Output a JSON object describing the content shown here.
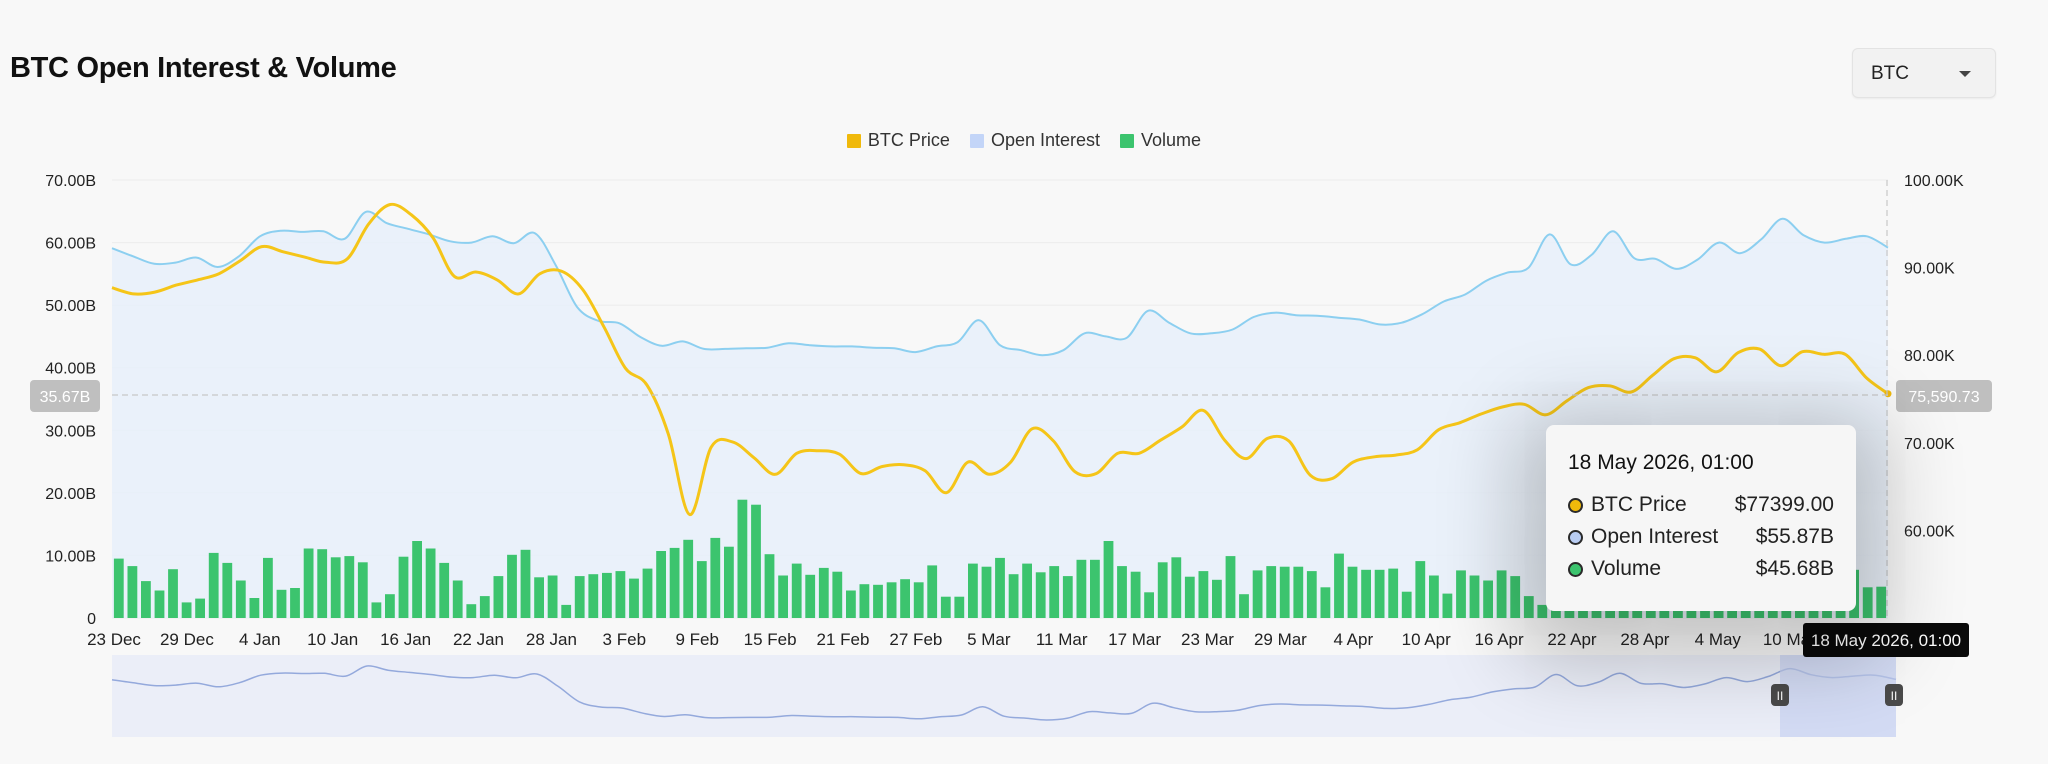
{
  "header": {
    "title": "BTC Open Interest & Volume"
  },
  "asset_select": {
    "value": "BTC"
  },
  "legend": [
    {
      "label": "BTC Price",
      "color": "#f0b90b"
    },
    {
      "label": "Open Interest",
      "color": "#c3d5f8"
    },
    {
      "label": "Volume",
      "color": "#3cc46e"
    }
  ],
  "crosshair": {
    "left_label": "35.67B",
    "right_label": "75,590.73",
    "x_label": "18 May 2026, 01:00"
  },
  "tooltip": {
    "time": "18 May 2026, 01:00",
    "rows": [
      {
        "label": "BTC Price",
        "value": "$77399.00",
        "color": "#f0b90b"
      },
      {
        "label": "Open Interest",
        "value": "$55.87B",
        "color": "#b9cdf3"
      },
      {
        "label": "Volume",
        "value": "$45.68B",
        "color": "#3cc46e"
      }
    ]
  },
  "chart_data": {
    "type": "line",
    "title": "BTC Open Interest & Volume",
    "x_ticks": [
      "23 Dec",
      "29 Dec",
      "4 Jan",
      "10 Jan",
      "16 Jan",
      "22 Jan",
      "28 Jan",
      "3 Feb",
      "9 Feb",
      "15 Feb",
      "21 Feb",
      "27 Feb",
      "5 Mar",
      "11 Mar",
      "17 Mar",
      "23 Mar",
      "29 Mar",
      "4 Apr",
      "10 Apr",
      "16 Apr",
      "22 Apr",
      "28 Apr",
      "4 May",
      "10 May"
    ],
    "y_left": {
      "ticks": [
        "0",
        "10.00B",
        "20.00B",
        "30.00B",
        "40.00B",
        "50.00B",
        "60.00B",
        "70.00B"
      ],
      "range": [
        0,
        70
      ],
      "unit": "B"
    },
    "y_right": {
      "ticks": [
        "60.00K",
        "70.00K",
        "80.00K",
        "90.00K",
        "100.00K"
      ],
      "range": [
        50000,
        100000
      ]
    },
    "grid": true,
    "legend_position": "top-center",
    "series": [
      {
        "name": "BTC Price",
        "axis": "right",
        "type": "line",
        "color": "#f0b90b",
        "values": [
          87700,
          87000,
          87200,
          88000,
          88600,
          89300,
          90800,
          92400,
          91800,
          91200,
          90600,
          91000,
          95000,
          97200,
          96000,
          93400,
          89000,
          89500,
          88600,
          87000,
          89300,
          89600,
          87500,
          83200,
          78500,
          76600,
          71000,
          61800,
          69500,
          70100,
          68300,
          66400,
          68800,
          69100,
          68700,
          66500,
          67300,
          67500,
          66800,
          64300,
          67800,
          66400,
          67800,
          71600,
          70200,
          66700,
          66500,
          68800,
          68800,
          70300,
          71800,
          73700,
          70300,
          68200,
          70500,
          70200,
          66300,
          65900,
          67800,
          68400,
          68600,
          69200,
          71500,
          72300,
          73300,
          74100,
          74400,
          73200,
          74800,
          76300,
          76500,
          75800,
          77700,
          79600,
          79700,
          78100,
          80300,
          80700,
          78800,
          80400,
          80100,
          80100,
          77400,
          75600
        ]
      },
      {
        "name": "Open Interest",
        "axis": "left",
        "type": "area",
        "color": "#8ccff0",
        "values": [
          59.1,
          57.8,
          56.6,
          56.8,
          57.6,
          56.1,
          57.8,
          61.0,
          61.9,
          61.7,
          61.8,
          60.6,
          64.9,
          63.1,
          62.2,
          61.3,
          60.2,
          60.0,
          61.0,
          59.9,
          61.5,
          56.3,
          49.7,
          47.5,
          47.1,
          44.9,
          43.5,
          44.2,
          43.0,
          43.0,
          43.1,
          43.2,
          43.9,
          43.6,
          43.4,
          43.4,
          43.2,
          43.1,
          42.5,
          43.4,
          44.1,
          47.6,
          43.6,
          42.8,
          42.0,
          42.8,
          45.5,
          45.0,
          44.8,
          49.1,
          47.2,
          45.5,
          45.5,
          46.1,
          48.1,
          48.8,
          48.4,
          48.3,
          48.0,
          47.7,
          46.9,
          47.2,
          48.6,
          50.6,
          51.7,
          53.9,
          55.2,
          56.0,
          61.3,
          56.5,
          58.1,
          61.8,
          57.5,
          57.4,
          55.8,
          57.3,
          60.0,
          58.3,
          60.5,
          63.8,
          61.2,
          60.0,
          60.6,
          61.0,
          59.2
        ]
      },
      {
        "name": "Volume",
        "axis": "left",
        "type": "bar",
        "color": "#3cc46e",
        "values": [
          9.5,
          8.3,
          5.9,
          4.4,
          7.8,
          2.5,
          3.1,
          10.4,
          8.8,
          6.0,
          3.2,
          9.6,
          4.5,
          4.8,
          11.1,
          11.0,
          9.7,
          9.9,
          8.9,
          2.5,
          3.8,
          9.8,
          12.3,
          11.1,
          8.8,
          6.0,
          2.2,
          3.5,
          6.7,
          10.1,
          10.9,
          6.5,
          6.8,
          2.1,
          6.7,
          7.0,
          7.2,
          7.5,
          6.3,
          7.9,
          10.7,
          11.2,
          12.5,
          9.1,
          12.8,
          11.4,
          18.9,
          18.1,
          10.2,
          6.8,
          8.7,
          6.9,
          8.0,
          7.4,
          4.4,
          5.4,
          5.3,
          5.7,
          6.2,
          5.7,
          8.4,
          3.4,
          3.4,
          8.7,
          8.2,
          9.6,
          7.0,
          8.7,
          7.3,
          8.3,
          6.7,
          9.3,
          9.3,
          12.3,
          8.3,
          7.4,
          4.1,
          8.9,
          9.7,
          6.6,
          7.5,
          6.1,
          9.9,
          3.8,
          7.6,
          8.3,
          8.2,
          8.2,
          7.5,
          4.9,
          10.3,
          8.2,
          7.7,
          7.7,
          7.9,
          4.2,
          9.1,
          6.8,
          3.9,
          7.6,
          6.8,
          6.0,
          7.6,
          6.7,
          3.5,
          2.1,
          4.6,
          7.1,
          8.8,
          8.0,
          8.6,
          8.0,
          7.3,
          4.2,
          6.0,
          8.5,
          8.1,
          6.5,
          7.6,
          9.8,
          7.0,
          7.9,
          7.5,
          7.9,
          7.8,
          7.9,
          7.9,
          8.0,
          7.7,
          4.9,
          5.0
        ]
      }
    ]
  }
}
